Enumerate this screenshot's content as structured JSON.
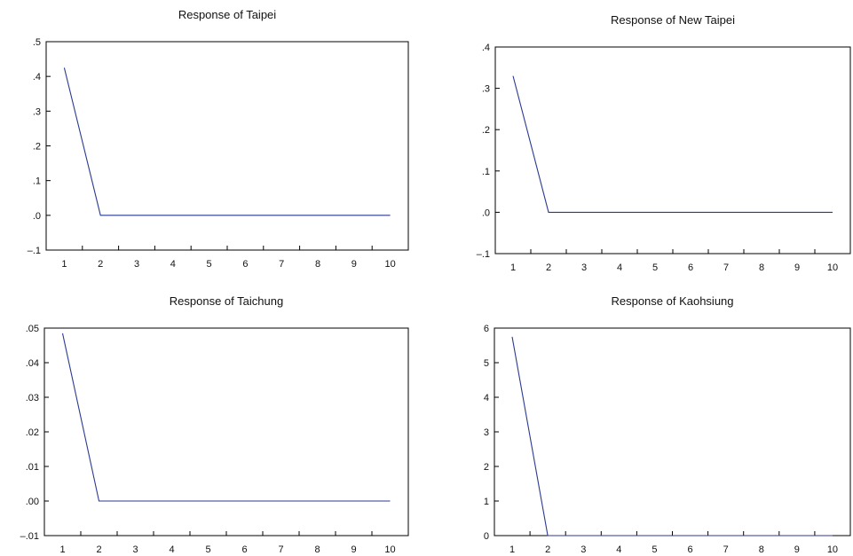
{
  "chart_data": [
    {
      "type": "line",
      "title": "Response of Taipei",
      "x": [
        1,
        2,
        3,
        4,
        5,
        6,
        7,
        8,
        9,
        10
      ],
      "series": [
        {
          "values": [
            0.425,
            0,
            0,
            0,
            0,
            0,
            0,
            0,
            0,
            0
          ]
        }
      ],
      "ylim": [
        -0.1,
        0.5
      ],
      "yticks": [
        ".5",
        ".4",
        ".3",
        ".2",
        ".1",
        ".0",
        "–.1"
      ],
      "ytick_values": [
        0.5,
        0.4,
        0.3,
        0.2,
        0.1,
        0.0,
        -0.1
      ],
      "xticks": [
        "1",
        "2",
        "3",
        "4",
        "5",
        "6",
        "7",
        "8",
        "9",
        "10"
      ],
      "grid": false,
      "line_color": "#2b3a8f"
    },
    {
      "type": "line",
      "title": "Response of New Taipei",
      "x": [
        1,
        2,
        3,
        4,
        5,
        6,
        7,
        8,
        9,
        10
      ],
      "series": [
        {
          "values": [
            0.33,
            0,
            0,
            0,
            0,
            0,
            0,
            0,
            0,
            0
          ]
        }
      ],
      "ylim": [
        -0.1,
        0.4
      ],
      "yticks": [
        ".4",
        ".3",
        ".2",
        ".1",
        ".0",
        "–.1"
      ],
      "ytick_values": [
        0.4,
        0.3,
        0.2,
        0.1,
        0.0,
        -0.1
      ],
      "xticks": [
        "1",
        "2",
        "3",
        "4",
        "5",
        "6",
        "7",
        "8",
        "9",
        "10"
      ],
      "grid": false,
      "line_color": "#2b3a8f"
    },
    {
      "type": "line",
      "title": "Response of Taichung",
      "x": [
        1,
        2,
        3,
        4,
        5,
        6,
        7,
        8,
        9,
        10
      ],
      "series": [
        {
          "values": [
            0.0485,
            0,
            0,
            0,
            0,
            0,
            0,
            0,
            0,
            0
          ]
        }
      ],
      "ylim": [
        -0.01,
        0.05
      ],
      "yticks": [
        ".05",
        ".04",
        ".03",
        ".02",
        ".01",
        ".00",
        "–.01"
      ],
      "ytick_values": [
        0.05,
        0.04,
        0.03,
        0.02,
        0.01,
        0.0,
        -0.01
      ],
      "xticks": [
        "1",
        "2",
        "3",
        "4",
        "5",
        "6",
        "7",
        "8",
        "9",
        "10"
      ],
      "grid": false,
      "line_color": "#2b3a8f"
    },
    {
      "type": "line",
      "title": "Response of Kaohsiung",
      "x": [
        1,
        2,
        3,
        4,
        5,
        6,
        7,
        8,
        9,
        10
      ],
      "series": [
        {
          "values": [
            5.75,
            0,
            0,
            0,
            0,
            0,
            0,
            0,
            0,
            0
          ]
        }
      ],
      "ylim": [
        0,
        6
      ],
      "yticks": [
        "6",
        "5",
        "4",
        "3",
        "2",
        "1",
        "0"
      ],
      "ytick_values": [
        6,
        5,
        4,
        3,
        2,
        1,
        0
      ],
      "xticks": [
        "1",
        "2",
        "3",
        "4",
        "5",
        "6",
        "7",
        "8",
        "9",
        "10"
      ],
      "grid": false,
      "line_color": "#2b3a8f"
    }
  ]
}
